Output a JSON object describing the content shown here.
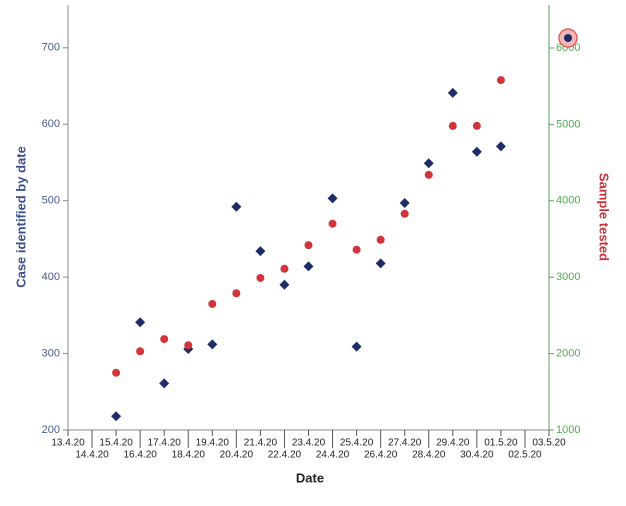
{
  "chart_data": {
    "type": "scatter",
    "x_label": "Date",
    "y_label": "Case identified by date",
    "y2_label": "Sample tested",
    "categories": [
      "13.4.20",
      "14.4.20",
      "15.4.20",
      "16.4.20",
      "17.4.20",
      "18.4.20",
      "19.4.20",
      "20.4.20",
      "21.4.20",
      "22.4.20",
      "23.4.20",
      "24.4.20",
      "25.4.20",
      "26.4.20",
      "27.4.20",
      "28.4.20",
      "29.4.20",
      "30.4.20",
      "01.5.20",
      "02.5.20",
      "03.5.20"
    ],
    "series": [
      {
        "name": "Case identified by date",
        "color": "#1f2d66",
        "marker": "diamond",
        "values": [
          null,
          null,
          218,
          341,
          261,
          306,
          312,
          492,
          434,
          390,
          414,
          503,
          309,
          418,
          497,
          549,
          641,
          564,
          571,
          null,
          null
        ]
      },
      {
        "name": "Sample tested",
        "color": "#d2343c",
        "marker": "circle",
        "axis": "y2",
        "values": [
          null,
          null,
          1750,
          2030,
          2190,
          2110,
          2650,
          2790,
          2990,
          3110,
          3420,
          3700,
          3360,
          3490,
          3830,
          4340,
          4980,
          4980,
          5580,
          null,
          null
        ]
      }
    ],
    "ylim": [
      200,
      756
    ],
    "yticks": [
      200,
      300,
      400,
      500,
      600,
      700
    ],
    "y2lim": [
      1000,
      6563
    ],
    "y2ticks": [
      1000,
      2000,
      3000,
      4000,
      5000,
      6000
    ],
    "grid": false
  }
}
